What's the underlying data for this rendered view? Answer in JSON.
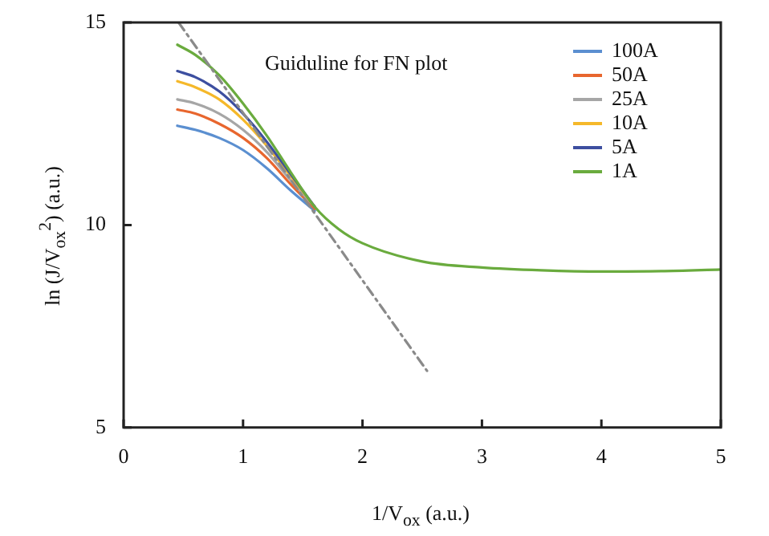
{
  "chart_data": {
    "type": "line",
    "xlabel": "1/V$_{ox}$ (a.u.)",
    "ylabel": "ln (J/V$_{ox}$$^{2}$) (a.u.)",
    "xlim": [
      0,
      5
    ],
    "ylim": [
      5,
      15
    ],
    "xticks": [
      0,
      1,
      2,
      3,
      4,
      5
    ],
    "yticks": [
      5,
      10,
      15
    ],
    "grid": false,
    "legend": "top right",
    "marker": "none",
    "x": [
      0.45,
      0.6,
      0.8,
      1.0,
      1.2,
      1.4,
      1.6,
      1.8,
      2.0,
      2.5,
      3.0,
      3.5,
      4.0,
      4.5,
      5.0
    ],
    "series": [
      {
        "name": "100A",
        "color": "#5b8fd0",
        "values": [
          12.45,
          12.35,
          12.15,
          11.85,
          11.4,
          10.85,
          10.35,
          null,
          null,
          null,
          null,
          null,
          null,
          null,
          null
        ]
      },
      {
        "name": "50A",
        "color": "#e8662e",
        "values": [
          12.85,
          12.75,
          12.5,
          12.15,
          11.65,
          11.0,
          10.4,
          null,
          null,
          null,
          null,
          null,
          null,
          null,
          null
        ]
      },
      {
        "name": "25A",
        "color": "#a6a6a6",
        "values": [
          13.1,
          13.0,
          12.75,
          12.35,
          11.8,
          11.1,
          10.45,
          null,
          null,
          null,
          null,
          null,
          null,
          null,
          null
        ]
      },
      {
        "name": "10A",
        "color": "#f5b82a",
        "values": [
          13.55,
          13.4,
          13.1,
          12.6,
          11.95,
          11.2,
          10.45,
          null,
          null,
          null,
          null,
          null,
          null,
          null,
          null
        ]
      },
      {
        "name": "5A",
        "color": "#3d4fa0",
        "values": [
          13.8,
          13.65,
          13.3,
          12.75,
          12.05,
          11.25,
          10.45,
          null,
          null,
          null,
          null,
          null,
          null,
          null,
          null
        ]
      },
      {
        "name": "1A",
        "color": "#6aab3e",
        "values": [
          14.45,
          14.2,
          13.7,
          13.0,
          12.2,
          11.3,
          10.45,
          9.9,
          9.55,
          9.1,
          8.95,
          8.88,
          8.85,
          8.86,
          8.9
        ]
      },
      {
        "type": "line",
        "color": "#8a8a8a",
        "line_style": "dashed",
        "x": [
          0.46,
          2.54
        ],
        "values": [
          15,
          6.4
        ]
      }
    ],
    "annotations": [
      "Guiduline for FN plot"
    ]
  }
}
